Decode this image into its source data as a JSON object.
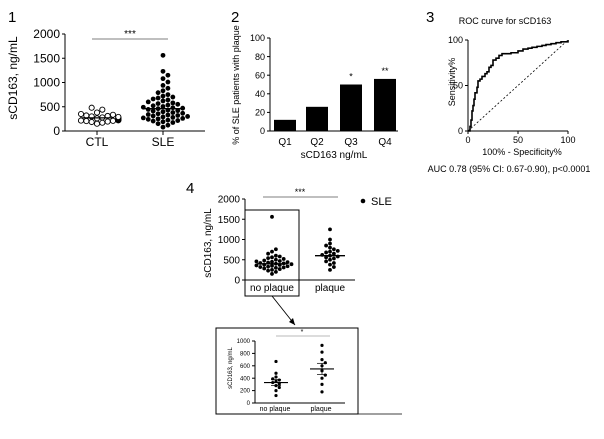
{
  "panels": {
    "p1": {
      "number": "1",
      "ylabel": "sCD163, ng/mL",
      "yticks": [
        0,
        500,
        1000,
        1500,
        2000
      ],
      "ylim": [
        0,
        2000
      ],
      "categories": [
        "CTL",
        "SLE"
      ],
      "significance": "***",
      "ctl_values": [
        150,
        170,
        185,
        195,
        205,
        210,
        215,
        220,
        225,
        235,
        245,
        250,
        255,
        262,
        268,
        275,
        280,
        290,
        300,
        310,
        320,
        335,
        350,
        380,
        440,
        480
      ],
      "ctl_mean": 270,
      "sle_values": [
        80,
        120,
        150,
        175,
        190,
        205,
        215,
        225,
        240,
        250,
        260,
        270,
        280,
        290,
        300,
        310,
        320,
        330,
        340,
        355,
        365,
        380,
        395,
        410,
        420,
        430,
        445,
        460,
        470,
        480,
        490,
        505,
        520,
        535,
        550,
        565,
        580,
        600,
        620,
        640,
        660,
        680,
        700,
        720,
        750,
        790,
        830,
        880,
        940,
        1010,
        1080,
        1150,
        1230,
        1560
      ],
      "sle_mean": 460
    },
    "p2": {
      "number": "2",
      "ylabel": "% of SLE patients with plaque",
      "xlabel": "sCD163 ng/mL",
      "yticks": [
        0,
        20,
        40,
        60,
        80,
        100
      ],
      "ylim": [
        0,
        100
      ],
      "categories": [
        "Q1",
        "Q2",
        "Q3",
        "Q4"
      ],
      "values": [
        12,
        26,
        50,
        56
      ],
      "annotations": [
        "",
        "",
        "*",
        "**"
      ]
    },
    "p3": {
      "number": "3",
      "title": "ROC curve for sCD163",
      "ylabel": "Sensitivity%",
      "xlabel": "100% - Specificity%",
      "ticks": [
        0,
        50,
        100
      ],
      "caption": "AUC 0.78 (95% CI: 0.67-0.90), p<0.0001",
      "roc_points": [
        [
          0,
          0
        ],
        [
          2,
          5
        ],
        [
          3,
          12
        ],
        [
          4,
          22
        ],
        [
          5,
          28
        ],
        [
          6,
          35
        ],
        [
          7,
          42
        ],
        [
          9,
          48
        ],
        [
          10,
          55
        ],
        [
          12,
          57
        ],
        [
          14,
          60
        ],
        [
          17,
          63
        ],
        [
          19,
          65
        ],
        [
          21,
          70
        ],
        [
          23,
          72
        ],
        [
          25,
          78
        ],
        [
          28,
          80
        ],
        [
          31,
          83
        ],
        [
          34,
          85
        ],
        [
          39,
          85
        ],
        [
          43,
          86
        ],
        [
          48,
          86
        ],
        [
          50,
          88
        ],
        [
          55,
          90
        ],
        [
          60,
          91
        ],
        [
          64,
          92
        ],
        [
          69,
          93
        ],
        [
          74,
          94
        ],
        [
          78,
          95
        ],
        [
          83,
          96
        ],
        [
          88,
          97
        ],
        [
          93,
          98
        ],
        [
          100,
          100
        ]
      ]
    },
    "p4": {
      "number": "4",
      "ylabel": "sCD163, ng/mL",
      "yticks": [
        0,
        500,
        1000,
        1500,
        2000
      ],
      "ylim": [
        0,
        2000
      ],
      "categories": [
        "no plaque",
        "plaque"
      ],
      "significance": "***",
      "legend": "SLE",
      "noplaque_values": [
        150,
        200,
        230,
        250,
        270,
        285,
        300,
        310,
        320,
        330,
        340,
        350,
        360,
        370,
        380,
        390,
        400,
        410,
        420,
        430,
        440,
        450,
        460,
        470,
        480,
        500,
        520,
        540,
        560,
        580,
        600,
        650,
        700,
        760,
        1560
      ],
      "noplaque_mean": 400,
      "plaque_values": [
        250,
        320,
        380,
        420,
        460,
        500,
        530,
        560,
        580,
        600,
        620,
        650,
        680,
        700,
        720,
        760,
        800,
        850,
        900,
        1000,
        1250
      ],
      "plaque_mean": 600
    },
    "p5": {
      "ylabel": "sCD163, ng/mL",
      "yticks": [
        0,
        200,
        400,
        600,
        800,
        1000
      ],
      "ylim": [
        0,
        1000
      ],
      "categories": [
        "no plaque",
        "plaque"
      ],
      "significance": "*",
      "noplaque_values": [
        120,
        200,
        250,
        280,
        310,
        330,
        350,
        370,
        390,
        420,
        480,
        670
      ],
      "noplaque_mean": 330,
      "plaque_values": [
        180,
        300,
        400,
        450,
        520,
        600,
        650,
        700,
        820,
        930
      ],
      "plaque_mean": 550
    }
  }
}
